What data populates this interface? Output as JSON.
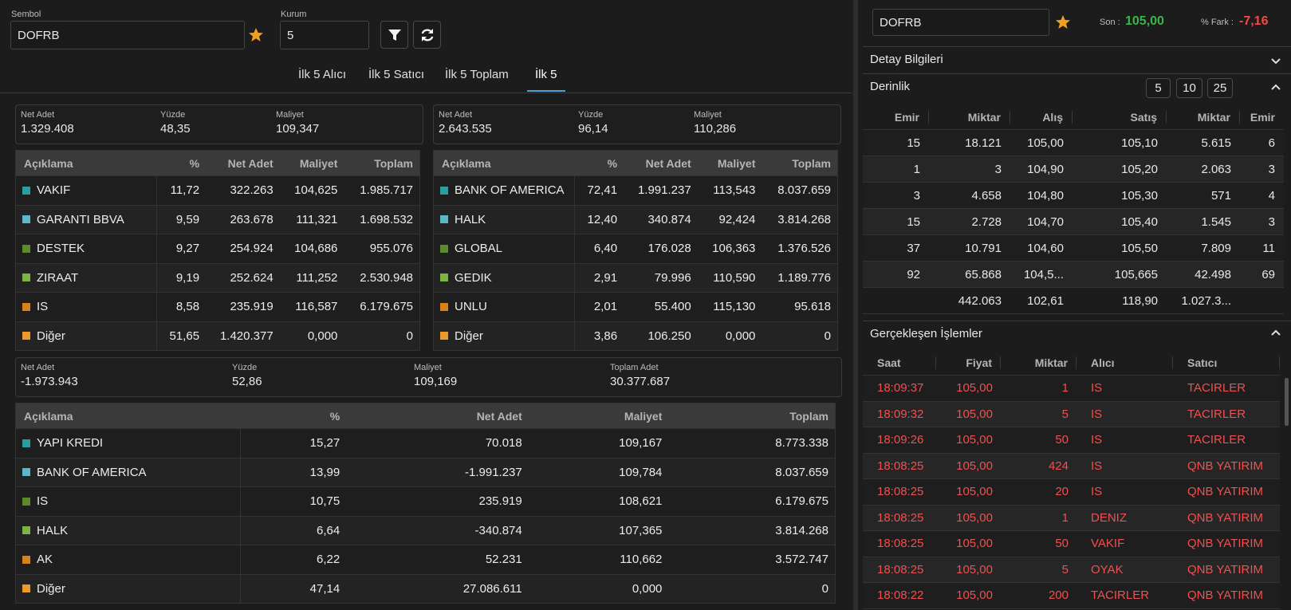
{
  "filters": {
    "symbol_label": "Sembol",
    "symbol": "DOFRB",
    "kurum_label": "Kurum",
    "kurum": "5"
  },
  "tabs": [
    "İlk 5 Alıcı",
    "İlk 5 Satıcı",
    "İlk 5 Toplam",
    "İlk 5"
  ],
  "active_tab": 3,
  "buyers": {
    "summary": [
      {
        "label": "Net Adet",
        "value": "1.329.408"
      },
      {
        "label": "Yüzde",
        "value": "48,35"
      },
      {
        "label": "Maliyet",
        "value": "109,347"
      }
    ],
    "columns": [
      "Açıklama",
      "%",
      "Net Adet",
      "Maliyet",
      "Toplam"
    ],
    "colors": [
      "#2a9d9f",
      "#5bb8c9",
      "#5a8a2a",
      "#7cb342",
      "#d9821a",
      "#ee9a2a"
    ],
    "rows": [
      [
        "VAKIF",
        "11,72",
        "322.263",
        "104,625",
        "1.985.717"
      ],
      [
        "GARANTI BBVA",
        "9,59",
        "263.678",
        "111,321",
        "1.698.532"
      ],
      [
        "DESTEK",
        "9,27",
        "254.924",
        "104,686",
        "955.076"
      ],
      [
        "ZIRAAT",
        "9,19",
        "252.624",
        "111,252",
        "2.530.948"
      ],
      [
        "IS",
        "8,58",
        "235.919",
        "116,587",
        "6.179.675"
      ],
      [
        "Diğer",
        "51,65",
        "1.420.377",
        "0,000",
        "0"
      ]
    ]
  },
  "sellers": {
    "summary": [
      {
        "label": "Net Adet",
        "value": "2.643.535"
      },
      {
        "label": "Yüzde",
        "value": "96,14"
      },
      {
        "label": "Maliyet",
        "value": "110,286"
      }
    ],
    "columns": [
      "Açıklama",
      "%",
      "Net Adet",
      "Maliyet",
      "Toplam"
    ],
    "colors": [
      "#2a9d9f",
      "#5bb8c9",
      "#5a8a2a",
      "#7cb342",
      "#d9821a",
      "#ee9a2a"
    ],
    "rows": [
      [
        "BANK OF AMERICA",
        "72,41",
        "1.991.237",
        "113,543",
        "8.037.659"
      ],
      [
        "HALK",
        "12,40",
        "340.874",
        "92,424",
        "3.814.268"
      ],
      [
        "GLOBAL",
        "6,40",
        "176.028",
        "106,363",
        "1.376.526"
      ],
      [
        "GEDIK",
        "2,91",
        "79.996",
        "110,590",
        "1.189.776"
      ],
      [
        "UNLU",
        "2,01",
        "55.400",
        "115,130",
        "95.618"
      ],
      [
        "Diğer",
        "3,86",
        "106.250",
        "0,000",
        "0"
      ]
    ]
  },
  "total": {
    "summary": [
      {
        "label": "Net Adet",
        "value": "-1.973.943"
      },
      {
        "label": "Yüzde",
        "value": "52,86"
      },
      {
        "label": "Maliyet",
        "value": "109,169"
      },
      {
        "label": "Toplam Adet",
        "value": "30.377.687"
      }
    ],
    "columns": [
      "Açıklama",
      "%",
      "Net Adet",
      "Maliyet",
      "Toplam"
    ],
    "colors": [
      "#2a9d9f",
      "#5bb8c9",
      "#5a8a2a",
      "#7cb342",
      "#d9821a",
      "#ee9a2a"
    ],
    "rows": [
      [
        "YAPI KREDI",
        "15,27",
        "70.018",
        "109,167",
        "8.773.338"
      ],
      [
        "BANK OF AMERICA",
        "13,99",
        "-1.991.237",
        "109,784",
        "8.037.659"
      ],
      [
        "IS",
        "10,75",
        "235.919",
        "108,621",
        "6.179.675"
      ],
      [
        "HALK",
        "6,64",
        "-340.874",
        "107,365",
        "3.814.268"
      ],
      [
        "AK",
        "6,22",
        "52.231",
        "110,662",
        "3.572.747"
      ],
      [
        "Diğer",
        "47,14",
        "27.086.611",
        "0,000",
        "0"
      ]
    ]
  },
  "quote": {
    "symbol": "DOFRB",
    "last_label": "Son :",
    "last": "105,00",
    "change_label": "% Fark :",
    "change": "-7,16"
  },
  "detail_title": "Detay Bilgileri",
  "depth": {
    "title": "Derinlik",
    "sizes": [
      "5",
      "10",
      "25"
    ],
    "columns": [
      "Emir",
      "Miktar",
      "Alış",
      "Satış",
      "Miktar",
      "Emir"
    ],
    "rows": [
      [
        "15",
        "18.121",
        "105,00",
        "105,10",
        "5.615",
        "6"
      ],
      [
        "1",
        "3",
        "104,90",
        "105,20",
        "2.063",
        "3"
      ],
      [
        "3",
        "4.658",
        "104,80",
        "105,30",
        "571",
        "4"
      ],
      [
        "15",
        "2.728",
        "104,70",
        "105,40",
        "1.545",
        "3"
      ],
      [
        "37",
        "10.791",
        "104,60",
        "105,50",
        "7.809",
        "11"
      ],
      [
        "92",
        "65.868",
        "104,5...",
        "105,665",
        "42.498",
        "69"
      ]
    ],
    "totals": [
      "442.063",
      "102,61",
      "118,90",
      "1.027.3..."
    ]
  },
  "trades": {
    "title": "Gerçekleşen İşlemler",
    "columns": [
      "Saat",
      "Fiyat",
      "Miktar",
      "Alıcı",
      "Satıcı"
    ],
    "rows": [
      [
        "18:09:37",
        "105,00",
        "1",
        "IS",
        "TACIRLER"
      ],
      [
        "18:09:32",
        "105,00",
        "5",
        "IS",
        "TACIRLER"
      ],
      [
        "18:09:26",
        "105,00",
        "50",
        "IS",
        "TACIRLER"
      ],
      [
        "18:08:25",
        "105,00",
        "424",
        "IS",
        "QNB YATIRIM"
      ],
      [
        "18:08:25",
        "105,00",
        "20",
        "IS",
        "QNB YATIRIM"
      ],
      [
        "18:08:25",
        "105,00",
        "1",
        "DENIZ",
        "QNB YATIRIM"
      ],
      [
        "18:08:25",
        "105,00",
        "50",
        "VAKIF",
        "QNB YATIRIM"
      ],
      [
        "18:08:25",
        "105,00",
        "5",
        "OYAK",
        "QNB YATIRIM"
      ],
      [
        "18:08:22",
        "105,00",
        "200",
        "TACIRLER",
        "QNB YATIRIM"
      ]
    ]
  }
}
